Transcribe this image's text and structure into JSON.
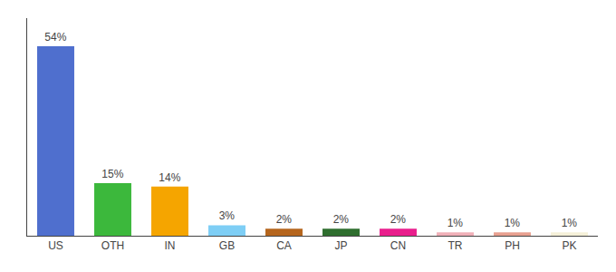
{
  "chart_data": {
    "type": "bar",
    "categories": [
      "US",
      "OTH",
      "IN",
      "GB",
      "CA",
      "JP",
      "CN",
      "TR",
      "PH",
      "PK"
    ],
    "values": [
      54,
      15,
      14,
      3,
      2,
      2,
      2,
      1,
      1,
      1
    ],
    "value_labels": [
      "54%",
      "15%",
      "14%",
      "3%",
      "2%",
      "2%",
      "2%",
      "1%",
      "1%",
      "1%"
    ],
    "colors": [
      "#4f6fce",
      "#3cb83c",
      "#f5a500",
      "#7ecef5",
      "#b5651d",
      "#2e6e2e",
      "#e91e8c",
      "#f0b0b8",
      "#e8a090",
      "#f5f0d8"
    ],
    "ylim": [
      0,
      62
    ],
    "data_labels": true,
    "grid": false,
    "tick_labels": "x"
  }
}
